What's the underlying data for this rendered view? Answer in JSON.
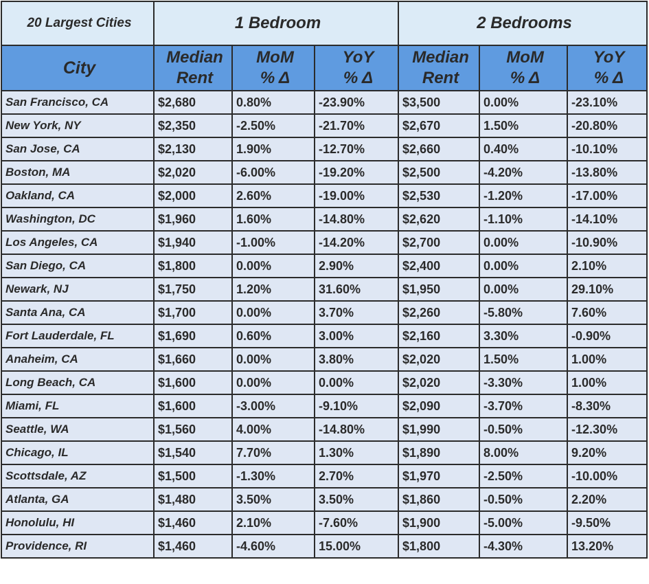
{
  "chart_data": {
    "type": "table",
    "group_headers": [
      "20 Largest Cities",
      "1 Bedroom",
      "2 Bedrooms"
    ],
    "columns": [
      [
        "City"
      ],
      [
        "Median",
        "Rent"
      ],
      [
        "MoM",
        "% Δ"
      ],
      [
        "YoY",
        "% Δ"
      ],
      [
        "Median",
        "Rent"
      ],
      [
        "MoM",
        "% Δ"
      ],
      [
        "YoY",
        "% Δ"
      ]
    ],
    "rows": [
      [
        "San Francisco, CA",
        "$2,680",
        "0.80%",
        "-23.90%",
        "$3,500",
        "0.00%",
        "-23.10%"
      ],
      [
        "New York, NY",
        "$2,350",
        "-2.50%",
        "-21.70%",
        "$2,670",
        "1.50%",
        "-20.80%"
      ],
      [
        "San Jose, CA",
        "$2,130",
        "1.90%",
        "-12.70%",
        "$2,660",
        "0.40%",
        "-10.10%"
      ],
      [
        "Boston, MA",
        "$2,020",
        "-6.00%",
        "-19.20%",
        "$2,500",
        "-4.20%",
        "-13.80%"
      ],
      [
        "Oakland, CA",
        "$2,000",
        "2.60%",
        "-19.00%",
        "$2,530",
        "-1.20%",
        "-17.00%"
      ],
      [
        "Washington, DC",
        "$1,960",
        "1.60%",
        "-14.80%",
        "$2,620",
        "-1.10%",
        "-14.10%"
      ],
      [
        "Los Angeles, CA",
        "$1,940",
        "-1.00%",
        "-14.20%",
        "$2,700",
        "0.00%",
        "-10.90%"
      ],
      [
        "San Diego, CA",
        "$1,800",
        "0.00%",
        "2.90%",
        "$2,400",
        "0.00%",
        "2.10%"
      ],
      [
        "Newark, NJ",
        "$1,750",
        "1.20%",
        "31.60%",
        "$1,950",
        "0.00%",
        "29.10%"
      ],
      [
        "Santa Ana, CA",
        "$1,700",
        "0.00%",
        "3.70%",
        "$2,260",
        "-5.80%",
        "7.60%"
      ],
      [
        "Fort Lauderdale, FL",
        "$1,690",
        "0.60%",
        "3.00%",
        "$2,160",
        "3.30%",
        "-0.90%"
      ],
      [
        "Anaheim, CA",
        "$1,660",
        "0.00%",
        "3.80%",
        "$2,020",
        "1.50%",
        "1.00%"
      ],
      [
        "Long Beach, CA",
        "$1,600",
        "0.00%",
        "0.00%",
        "$2,020",
        "-3.30%",
        "1.00%"
      ],
      [
        "Miami, FL",
        "$1,600",
        "-3.00%",
        "-9.10%",
        "$2,090",
        "-3.70%",
        "-8.30%"
      ],
      [
        "Seattle, WA",
        "$1,560",
        "4.00%",
        "-14.80%",
        "$1,990",
        "-0.50%",
        "-12.30%"
      ],
      [
        "Chicago, IL",
        "$1,540",
        "7.70%",
        "1.30%",
        "$1,890",
        "8.00%",
        "9.20%"
      ],
      [
        "Scottsdale, AZ",
        "$1,500",
        "-1.30%",
        "2.70%",
        "$1,970",
        "-2.50%",
        "-10.00%"
      ],
      [
        "Atlanta, GA",
        "$1,480",
        "3.50%",
        "3.50%",
        "$1,860",
        "-0.50%",
        "2.20%"
      ],
      [
        "Honolulu, HI",
        "$1,460",
        "2.10%",
        "-7.60%",
        "$1,900",
        "-5.00%",
        "-9.50%"
      ],
      [
        "Providence, RI",
        "$1,460",
        "-4.60%",
        "15.00%",
        "$1,800",
        "-4.30%",
        "13.20%"
      ]
    ]
  },
  "colors": {
    "group_header_bg": "#dcebf7",
    "column_header_bg": "#5f9be0",
    "column_header_text": "#3c4f63",
    "cell_bg": "#dfe7f4",
    "border": "#2b2b2b"
  }
}
